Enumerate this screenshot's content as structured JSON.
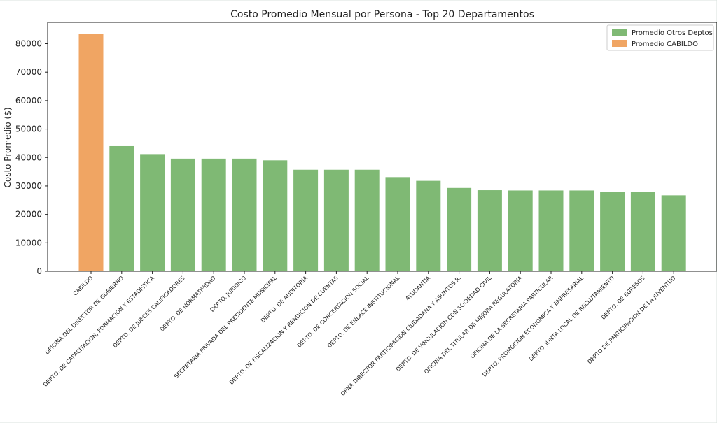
{
  "chart_data": {
    "type": "bar",
    "title": "Costo Promedio Mensual por Persona - Top 20 Departamentos",
    "xlabel": "",
    "ylabel": "Costo Promedio ($)",
    "ylim": [
      0,
      87500
    ],
    "yticks": [
      0,
      10000,
      20000,
      30000,
      40000,
      50000,
      60000,
      70000,
      80000
    ],
    "grid": false,
    "legend_position": "top-right",
    "categories": [
      "CABILDO",
      "OFICINA DEL DIRECTOR DE GOBIERNO",
      "DEPTO. DE CAPACITACION, FORMACION Y ESTADISTICA",
      "DEPTO. DE JUECES CALIFICADORES",
      "DEPTO. DE NORMATIVIDAD",
      "DEPTO. JURIDICO",
      "SECRETARIA PRIVADA DEL PRESIDENTE MUNICIPAL",
      "DEPTO. DE AUDITORIA",
      "DEPTO. DE FISCALIZACION Y RENDICION DE CUENTAS",
      "DEPTO. DE CONCERTACION SOCIAL",
      "DEPTO. DE ENLACE INSTITUCIONAL",
      "AYUDANTIA",
      "OFNA DIRECTOR PARTICIPACION CIUDADANA Y ASUNTOS R.",
      "DEPTO. DE VINCULACION CON SOCIEDAD CIVIL",
      "OFICINA DEL TITULAR DE MEJORA REGULATORIA",
      "OFICINA DE LA SECRETARIA PARTICULAR",
      "DEPTO. PROMOCION ECONOMICA Y EMPRESARIAL",
      "DEPTO. JUNTA LOCAL DE RECLUTAMIENTO",
      "DEPTO. DE EGRESOS",
      "DEPTO DE PARTICIPACION DE LA JUVENTUD"
    ],
    "values": [
      83500,
      44000,
      41200,
      39600,
      39600,
      39600,
      39000,
      35700,
      35700,
      35700,
      33100,
      31800,
      29300,
      28500,
      28400,
      28400,
      28400,
      28000,
      28000,
      26700
    ],
    "highlight_index": 0,
    "series": [
      {
        "name": "Promedio Otros Deptos",
        "color": "#7fb974"
      },
      {
        "name": "Promedio CABILDO",
        "color": "#f0a563"
      }
    ]
  }
}
